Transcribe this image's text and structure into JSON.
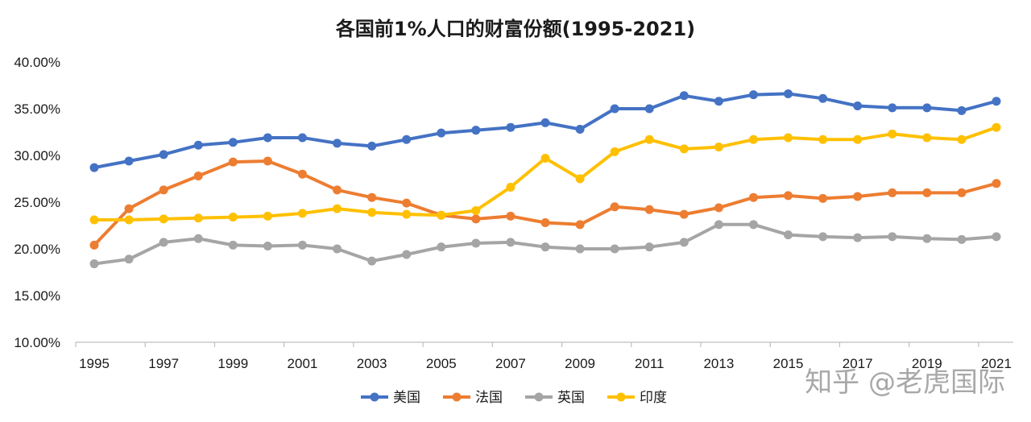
{
  "chart_data": {
    "type": "line",
    "title": "各国前1%人口的财富份额(1995-2021)",
    "x": [
      1995,
      1996,
      1997,
      1998,
      1999,
      2000,
      2001,
      2002,
      2003,
      2004,
      2005,
      2006,
      2007,
      2008,
      2009,
      2010,
      2011,
      2012,
      2013,
      2014,
      2015,
      2016,
      2017,
      2018,
      2019,
      2020,
      2021
    ],
    "x_tick_labels": [
      "1995",
      "1997",
      "1999",
      "2001",
      "2003",
      "2005",
      "2007",
      "2009",
      "2011",
      "2013",
      "2015",
      "2017",
      "2019",
      "2021"
    ],
    "y_tick_labels": [
      "10.00%",
      "15.00%",
      "20.00%",
      "25.00%",
      "30.00%",
      "35.00%",
      "40.00%"
    ],
    "ylim": [
      10,
      40
    ],
    "y_unit": "%",
    "grid": false,
    "legend_position": "bottom",
    "series": [
      {
        "name": "美国",
        "color": "#4472C4",
        "values": [
          28.7,
          29.4,
          30.1,
          31.1,
          31.4,
          31.9,
          31.9,
          31.3,
          31.0,
          31.7,
          32.4,
          32.7,
          33.0,
          33.5,
          32.8,
          35.0,
          35.0,
          36.4,
          35.8,
          36.5,
          36.6,
          36.1,
          35.3,
          35.1,
          35.1,
          34.8,
          35.8
        ]
      },
      {
        "name": "法国",
        "color": "#ED7D31",
        "values": [
          20.4,
          24.3,
          26.3,
          27.8,
          29.3,
          29.4,
          28.0,
          26.3,
          25.5,
          24.9,
          23.6,
          23.2,
          23.5,
          22.8,
          22.6,
          24.5,
          24.2,
          23.7,
          24.4,
          25.5,
          25.7,
          25.4,
          25.6,
          26.0,
          26.0,
          26.0,
          27.0
        ]
      },
      {
        "name": "英国",
        "color": "#A5A5A5",
        "values": [
          18.4,
          18.9,
          20.7,
          21.1,
          20.4,
          20.3,
          20.4,
          20.0,
          18.7,
          19.4,
          20.2,
          20.6,
          20.7,
          20.2,
          20.0,
          20.0,
          20.2,
          20.7,
          22.6,
          22.6,
          21.5,
          21.3,
          21.2,
          21.3,
          21.1,
          21.0,
          21.3
        ]
      },
      {
        "name": "印度",
        "color": "#FFC000",
        "values": [
          23.1,
          23.1,
          23.2,
          23.3,
          23.4,
          23.5,
          23.8,
          24.3,
          23.9,
          23.7,
          23.6,
          24.1,
          26.6,
          29.7,
          27.5,
          30.4,
          31.7,
          30.7,
          30.9,
          31.7,
          31.9,
          31.7,
          31.7,
          32.3,
          31.9,
          31.7,
          33.0
        ]
      }
    ]
  },
  "watermark": {
    "text": "知乎 @老虎国际"
  }
}
